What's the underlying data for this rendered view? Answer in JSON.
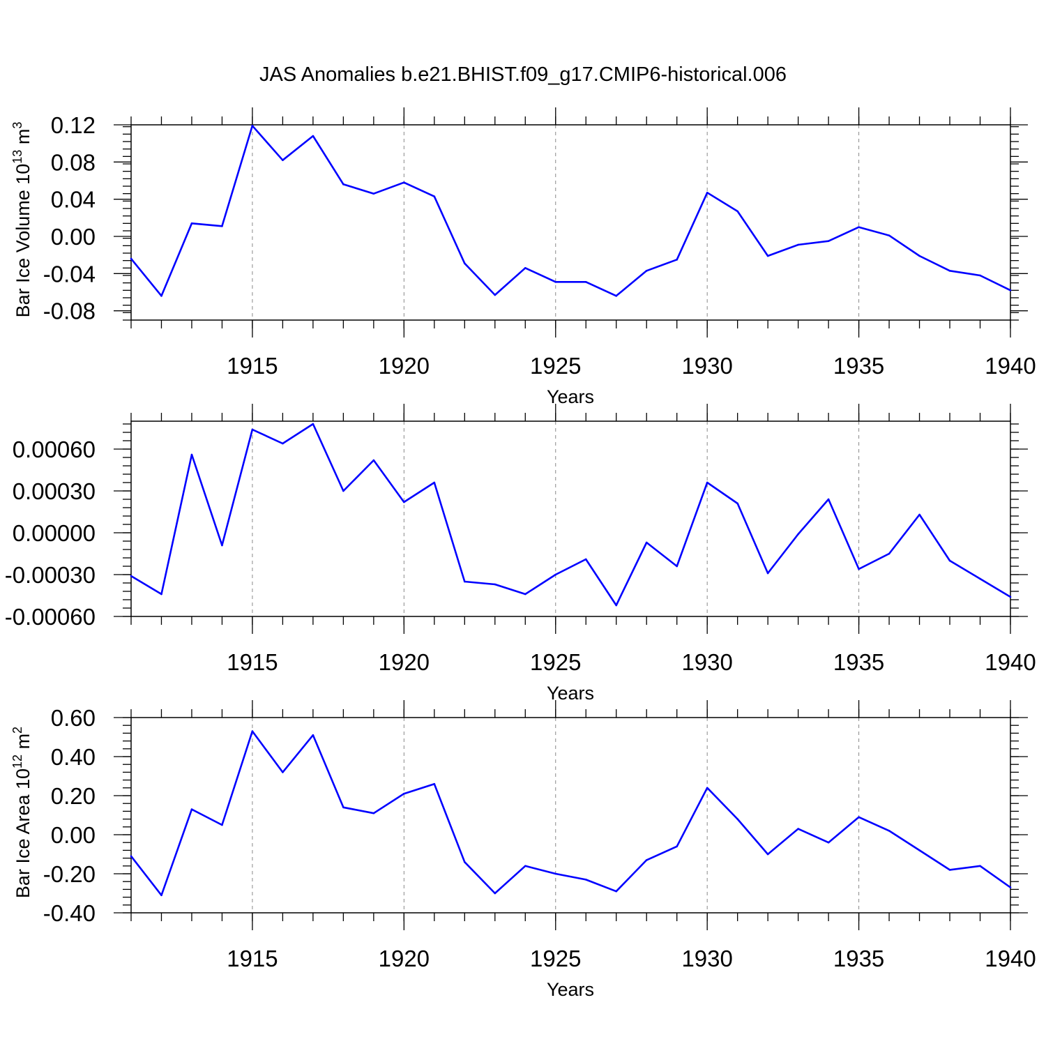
{
  "title": "JAS Anomalies b.e21.BHIST.f09_g17.CMIP6-historical.006",
  "colors": {
    "line": "#0000ff",
    "axis": "#000000",
    "grid": "#888888"
  },
  "chart_data": [
    {
      "type": "line",
      "ylabel": {
        "base": "Bar Ice Volume 10",
        "exp": "13",
        "unit": " m",
        "unit_exp": "3"
      },
      "xlabel": "Years",
      "xlim": [
        1911,
        1940
      ],
      "ylim": [
        -0.09,
        0.12
      ],
      "yticks": [
        -0.08,
        -0.04,
        0.0,
        0.04,
        0.08,
        0.12
      ],
      "ytick_labels": [
        "-0.08",
        "-0.04",
        "0.00",
        "0.04",
        "0.08",
        "0.12"
      ],
      "xticks": [
        1915,
        1920,
        1925,
        1930,
        1935,
        1940
      ],
      "xtick_labels": [
        "1915",
        "1920",
        "1925",
        "1930",
        "1935",
        "1940"
      ],
      "x": [
        1911,
        1912,
        1913,
        1914,
        1915,
        1916,
        1917,
        1918,
        1919,
        1920,
        1921,
        1922,
        1923,
        1924,
        1925,
        1926,
        1927,
        1928,
        1929,
        1930,
        1931,
        1932,
        1933,
        1934,
        1935,
        1936,
        1937,
        1938,
        1939,
        1940
      ],
      "values": [
        -0.024,
        -0.064,
        0.014,
        0.011,
        0.119,
        0.082,
        0.108,
        0.056,
        0.046,
        0.058,
        0.043,
        -0.029,
        -0.063,
        -0.034,
        -0.049,
        -0.049,
        -0.064,
        -0.037,
        -0.025,
        0.047,
        0.027,
        -0.021,
        -0.009,
        -0.005,
        0.01,
        0.001,
        -0.021,
        -0.037,
        -0.042,
        -0.058
      ]
    },
    {
      "type": "line",
      "ylabel": null,
      "xlabel": "Years",
      "xlim": [
        1911,
        1940
      ],
      "ylim": [
        -0.0006,
        0.0008
      ],
      "yticks": [
        -0.0006,
        -0.0003,
        0.0,
        0.0003,
        0.0006
      ],
      "ytick_labels": [
        "-0.00060",
        "-0.00030",
        "0.00000",
        "0.00030",
        "0.00060"
      ],
      "xticks": [
        1915,
        1920,
        1925,
        1930,
        1935,
        1940
      ],
      "xtick_labels": [
        "1915",
        "1920",
        "1925",
        "1930",
        "1935",
        "1940"
      ],
      "x": [
        1911,
        1912,
        1913,
        1914,
        1915,
        1916,
        1917,
        1918,
        1919,
        1920,
        1921,
        1922,
        1923,
        1924,
        1925,
        1926,
        1927,
        1928,
        1929,
        1930,
        1931,
        1932,
        1933,
        1934,
        1935,
        1936,
        1937,
        1938,
        1939,
        1940
      ],
      "values": [
        -0.00031,
        -0.00044,
        0.00056,
        -9e-05,
        0.00074,
        0.00064,
        0.00078,
        0.0003,
        0.00052,
        0.00022,
        0.00036,
        -0.00035,
        -0.00037,
        -0.00044,
        -0.0003,
        -0.00019,
        -0.00052,
        -7e-05,
        -0.00024,
        0.00036,
        0.00021,
        -0.00029,
        -1e-05,
        0.00024,
        -0.00026,
        -0.00015,
        0.00013,
        -0.0002,
        -0.00033,
        -0.00046
      ]
    },
    {
      "type": "line",
      "ylabel": {
        "base": "Bar Ice Area 10",
        "exp": "12",
        "unit": " m",
        "unit_exp": "2"
      },
      "xlabel": "Years",
      "xlim": [
        1911,
        1940
      ],
      "ylim": [
        -0.4,
        0.6
      ],
      "yticks": [
        -0.4,
        -0.2,
        0.0,
        0.2,
        0.4,
        0.6
      ],
      "ytick_labels": [
        "-0.40",
        "-0.20",
        "0.00",
        "0.20",
        "0.40",
        "0.60"
      ],
      "xticks": [
        1915,
        1920,
        1925,
        1930,
        1935,
        1940
      ],
      "xtick_labels": [
        "1915",
        "1920",
        "1925",
        "1930",
        "1935",
        "1940"
      ],
      "x": [
        1911,
        1912,
        1913,
        1914,
        1915,
        1916,
        1917,
        1918,
        1919,
        1920,
        1921,
        1922,
        1923,
        1924,
        1925,
        1926,
        1927,
        1928,
        1929,
        1930,
        1931,
        1932,
        1933,
        1934,
        1935,
        1936,
        1937,
        1938,
        1939,
        1940
      ],
      "values": [
        -0.11,
        -0.31,
        0.13,
        0.05,
        0.53,
        0.32,
        0.51,
        0.14,
        0.11,
        0.21,
        0.26,
        -0.14,
        -0.3,
        -0.16,
        -0.2,
        -0.23,
        -0.29,
        -0.13,
        -0.06,
        0.24,
        0.08,
        -0.1,
        0.03,
        -0.04,
        0.09,
        0.02,
        -0.08,
        -0.18,
        -0.16,
        -0.27
      ]
    }
  ]
}
